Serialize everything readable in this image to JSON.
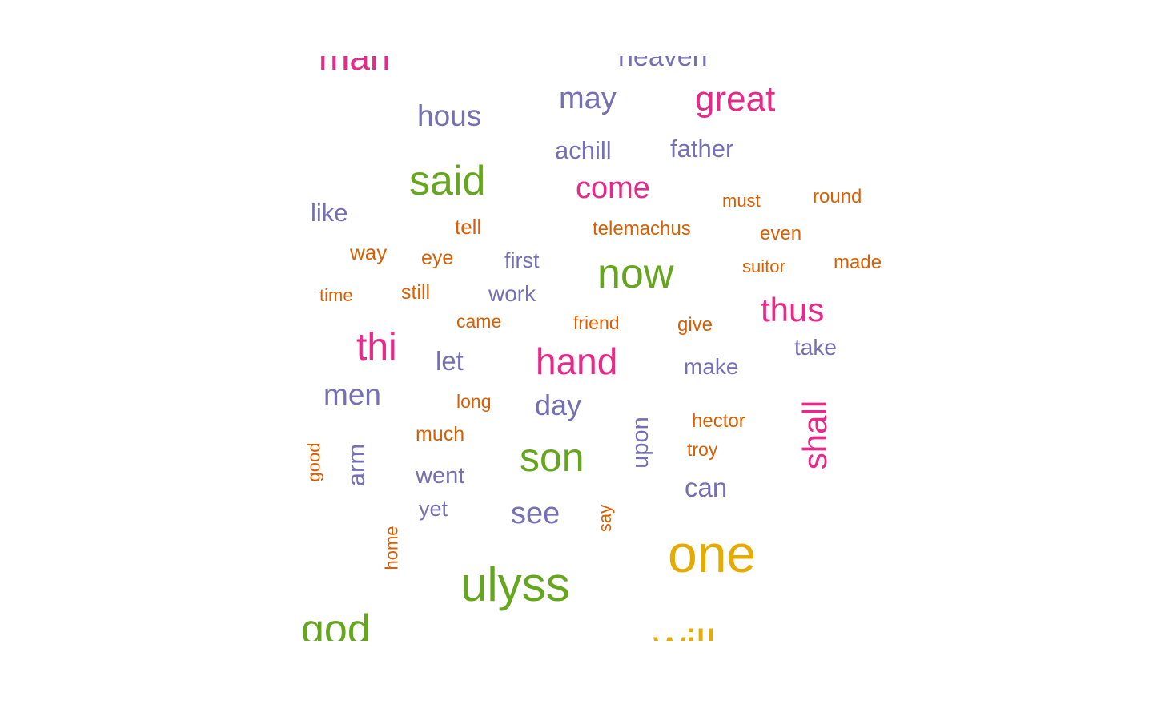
{
  "colors": {
    "pink": "#e7298a",
    "purple": "#7570b3",
    "orange": "#d95f02",
    "green": "#66a61e",
    "gold": "#e6ab02"
  },
  "words": {
    "man": "man",
    "heaven": "heaven",
    "may": "may",
    "great": "great",
    "hous": "hous",
    "achill": "achill",
    "father": "father",
    "said": "said",
    "come": "come",
    "must": "must",
    "round": "round",
    "like": "like",
    "tell": "tell",
    "telemachus": "telemachus",
    "even": "even",
    "way": "way",
    "eye": "eye",
    "first": "first",
    "now": "now",
    "suitor": "suitor",
    "made": "made",
    "time": "time",
    "still": "still",
    "work": "work",
    "came": "came",
    "friend": "friend",
    "give": "give",
    "thus": "thus",
    "thi": "thi",
    "let": "let",
    "hand": "hand",
    "make": "make",
    "take": "take",
    "men": "men",
    "long": "long",
    "day": "day",
    "hector": "hector",
    "shall": "shall",
    "upon": "upon",
    "much": "much",
    "troy": "troy",
    "good": "good",
    "arm": "arm",
    "son": "son",
    "went": "went",
    "can": "can",
    "yet": "yet",
    "see": "see",
    "say": "say",
    "home": "home",
    "one": "one",
    "ulyss": "ulyss",
    "god": "god",
    "will": "will"
  }
}
